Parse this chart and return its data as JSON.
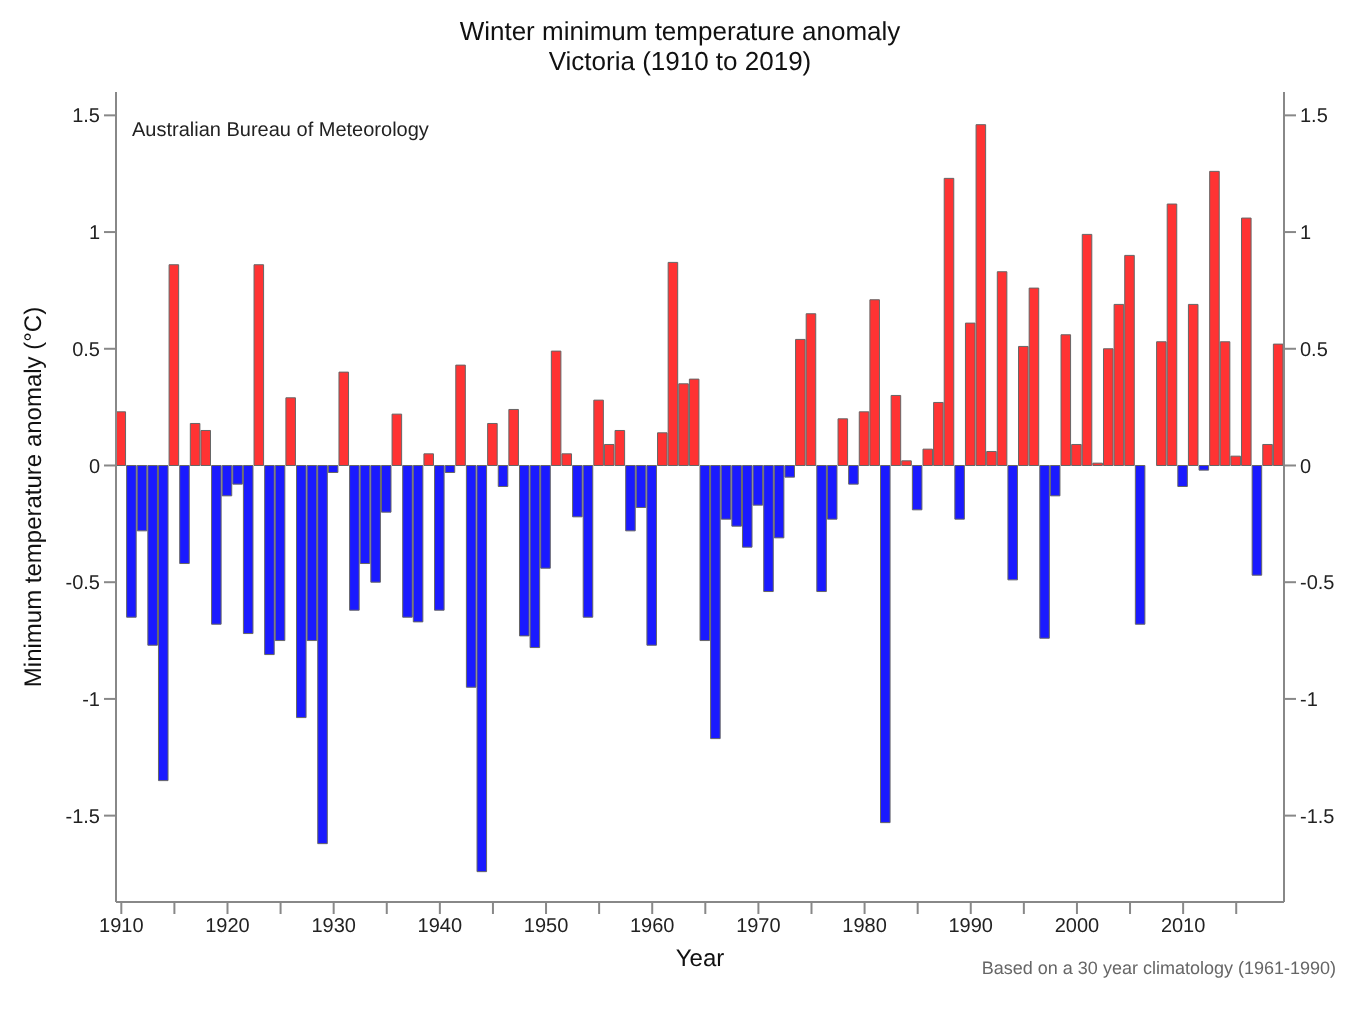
{
  "chart_data": {
    "type": "bar",
    "title": "Winter minimum temperature anomaly",
    "subtitle": "Victoria (1910 to 2019)",
    "xlabel": "Year",
    "ylabel": "Minimum temperature anomaly (°C)",
    "annotations": [
      "Australian Bureau of Meteorology",
      "Based on a 30 year climatology (1961-1990)"
    ],
    "x": [
      1910,
      1911,
      1912,
      1913,
      1914,
      1915,
      1916,
      1917,
      1918,
      1919,
      1920,
      1921,
      1922,
      1923,
      1924,
      1925,
      1926,
      1927,
      1928,
      1929,
      1930,
      1931,
      1932,
      1933,
      1934,
      1935,
      1936,
      1937,
      1938,
      1939,
      1940,
      1941,
      1942,
      1943,
      1944,
      1945,
      1946,
      1947,
      1948,
      1949,
      1950,
      1951,
      1952,
      1953,
      1954,
      1955,
      1956,
      1957,
      1958,
      1959,
      1960,
      1961,
      1962,
      1963,
      1964,
      1965,
      1966,
      1967,
      1968,
      1969,
      1970,
      1971,
      1972,
      1973,
      1974,
      1975,
      1976,
      1977,
      1978,
      1979,
      1980,
      1981,
      1982,
      1983,
      1984,
      1985,
      1986,
      1987,
      1988,
      1989,
      1990,
      1991,
      1992,
      1993,
      1994,
      1995,
      1996,
      1997,
      1998,
      1999,
      2000,
      2001,
      2002,
      2003,
      2004,
      2005,
      2006,
      2007,
      2008,
      2009,
      2010,
      2011,
      2012,
      2013,
      2014,
      2015,
      2016,
      2017,
      2018,
      2019
    ],
    "values": [
      0.23,
      -0.65,
      -0.28,
      -0.77,
      -1.35,
      0.86,
      -0.42,
      0.18,
      0.15,
      -0.68,
      -0.13,
      -0.08,
      -0.72,
      0.86,
      -0.81,
      -0.75,
      0.29,
      -1.08,
      -0.75,
      -1.62,
      -0.03,
      0.4,
      -0.62,
      -0.42,
      -0.5,
      -0.2,
      0.22,
      -0.65,
      -0.67,
      0.05,
      -0.62,
      -0.03,
      0.43,
      -0.95,
      -1.74,
      0.18,
      -0.09,
      0.24,
      -0.73,
      -0.78,
      -0.44,
      0.49,
      0.05,
      -0.22,
      -0.65,
      0.28,
      0.09,
      0.15,
      -0.28,
      -0.18,
      -0.77,
      0.14,
      0.87,
      0.35,
      0.37,
      -0.75,
      -1.17,
      -0.23,
      -0.26,
      -0.35,
      -0.17,
      -0.54,
      -0.31,
      -0.05,
      0.54,
      0.65,
      -0.54,
      -0.23,
      0.2,
      -0.08,
      0.23,
      0.71,
      -1.53,
      0.3,
      0.02,
      -0.19,
      0.07,
      0.27,
      1.23,
      -0.23,
      0.61,
      1.46,
      0.06,
      0.83,
      -0.49,
      0.51,
      0.76,
      -0.74,
      -0.13,
      0.56,
      0.09,
      0.99,
      0.01,
      0.5,
      0.69,
      0.9,
      -0.68,
      0,
      0.53,
      1.12,
      -0.09,
      0.69,
      -0.02,
      1.26,
      0.53,
      0.04,
      1.06,
      -0.47,
      0.09,
      0.52
    ],
    "colors": [
      "#ff3333",
      "#1a1aff",
      "#1a1aff",
      "#1a1aff",
      "#1a1aff",
      "#ff3333",
      "#1a1aff",
      "#ff3333",
      "#ff3333",
      "#1a1aff",
      "#1a1aff",
      "#1a1aff",
      "#1a1aff",
      "#ff3333",
      "#1a1aff",
      "#1a1aff",
      "#ff3333",
      "#1a1aff",
      "#1a1aff",
      "#1a1aff",
      "#1a1aff",
      "#ff3333",
      "#1a1aff",
      "#1a1aff",
      "#1a1aff",
      "#1a1aff",
      "#ff3333",
      "#1a1aff",
      "#1a1aff",
      "#ff3333",
      "#1a1aff",
      "#1a1aff",
      "#ff3333",
      "#1a1aff",
      "#1a1aff",
      "#ff3333",
      "#1a1aff",
      "#ff3333",
      "#1a1aff",
      "#1a1aff",
      "#1a1aff",
      "#ff3333",
      "#ff3333",
      "#1a1aff",
      "#1a1aff",
      "#ff3333",
      "#ff3333",
      "#ff3333",
      "#1a1aff",
      "#1a1aff",
      "#1a1aff",
      "#ff3333",
      "#ff3333",
      "#ff3333",
      "#ff3333",
      "#1a1aff",
      "#1a1aff",
      "#1a1aff",
      "#1a1aff",
      "#1a1aff",
      "#1a1aff",
      "#1a1aff",
      "#1a1aff",
      "#1a1aff",
      "#ff3333",
      "#ff3333",
      "#1a1aff",
      "#1a1aff",
      "#ff3333",
      "#1a1aff",
      "#ff3333",
      "#ff3333",
      "#1a1aff",
      "#ff3333",
      "#ff3333",
      "#1a1aff",
      "#ff3333",
      "#ff3333",
      "#ff3333",
      "#1a1aff",
      "#ff3333",
      "#ff3333",
      "#ff3333",
      "#ff3333",
      "#1a1aff",
      "#ff3333",
      "#ff3333",
      "#1a1aff",
      "#1a1aff",
      "#ff3333",
      "#ff3333",
      "#ff3333",
      "#ff3333",
      "#ff3333",
      "#ff3333",
      "#ff3333",
      "#1a1aff",
      "#ff3333",
      "#ff3333",
      "#ff3333",
      "#1a1aff",
      "#ff3333",
      "#1a1aff",
      "#ff3333",
      "#ff3333",
      "#ff3333",
      "#ff3333",
      "#1a1aff",
      "#ff3333",
      "#ff3333"
    ],
    "xlim": [
      1909.5,
      2019.5
    ],
    "xticks": [
      1910,
      {
        "value": 1915,
        "label": null
      },
      1920,
      {
        "value": 1925,
        "label": null
      },
      1930,
      {
        "value": 1935,
        "label": null
      },
      1940,
      {
        "value": 1945,
        "label": null
      },
      1950,
      {
        "value": 1955,
        "label": null
      },
      1960,
      {
        "value": 1965,
        "label": null
      },
      1970,
      {
        "value": 1975,
        "label": null
      },
      1980,
      {
        "value": 1985,
        "label": null
      },
      1990,
      {
        "value": 1995,
        "label": null
      },
      2000,
      {
        "value": 2005,
        "label": null
      },
      2010,
      {
        "value": 2015,
        "label": null
      }
    ],
    "ylim": [
      -1.87,
      1.6
    ],
    "yticks": [
      -1.5,
      -1,
      -0.5,
      0,
      0.5,
      1,
      1.5
    ],
    "y2lim": [
      -1.87,
      1.6
    ],
    "y2ticks": [
      -1.5,
      -1,
      -0.5,
      0,
      0.5,
      1,
      1.5
    ]
  }
}
